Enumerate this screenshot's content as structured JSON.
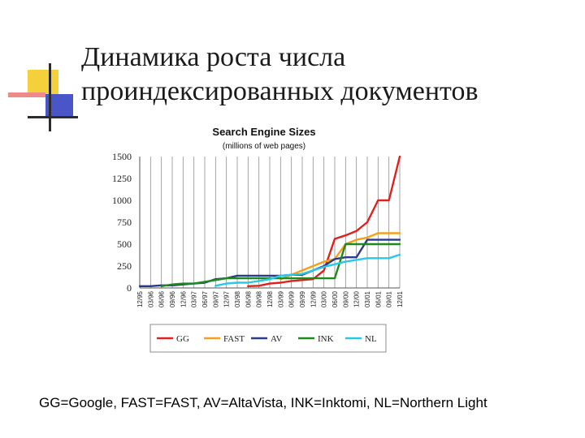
{
  "slide": {
    "title_line1": "Динамика роста числа",
    "title_line2": "проиндексированных документов",
    "caption": "GG=Google, FAST=FAST, AV=AltaVista, INK=Inktomi, NL=Northern Light"
  },
  "chart_data": {
    "type": "line",
    "title": "Search Engine Sizes",
    "subtitle": "(millions of web pages)",
    "xlabel": "",
    "ylabel": "",
    "ylim": [
      0,
      1500
    ],
    "yticks": [
      0,
      250,
      500,
      750,
      1000,
      1250,
      1500
    ],
    "ytick_labels": [
      "0",
      "250",
      "500",
      "750",
      "1000",
      "1250",
      "1500"
    ],
    "x": [
      "12/95",
      "03/96",
      "06/96",
      "09/96",
      "12/96",
      "03/97",
      "06/97",
      "09/97",
      "12/97",
      "03/98",
      "06/98",
      "09/98",
      "12/98",
      "03/99",
      "06/99",
      "09/99",
      "12/99",
      "03/00",
      "06/00",
      "09/00",
      "12/00",
      "03/01",
      "06/01",
      "09/01",
      "12/01"
    ],
    "grid": true,
    "legend_position": "bottom",
    "series": [
      {
        "name": "GG",
        "color": "#e0201e",
        "values": [
          null,
          null,
          null,
          null,
          null,
          null,
          null,
          null,
          null,
          null,
          20,
          25,
          50,
          60,
          80,
          90,
          100,
          200,
          560,
          600,
          650,
          750,
          1000,
          1000,
          1500
        ]
      },
      {
        "name": "FAST",
        "color": "#f4a018",
        "values": [
          null,
          null,
          null,
          null,
          null,
          null,
          null,
          null,
          null,
          null,
          null,
          null,
          null,
          100,
          150,
          200,
          250,
          300,
          330,
          500,
          550,
          575,
          625,
          625,
          625
        ]
      },
      {
        "name": "AV",
        "color": "#2a3a8c",
        "values": [
          20,
          20,
          30,
          30,
          40,
          50,
          60,
          100,
          110,
          140,
          140,
          140,
          140,
          140,
          150,
          150,
          200,
          250,
          330,
          350,
          350,
          550,
          550,
          550,
          550
        ]
      },
      {
        "name": "INK",
        "color": "#1e8a1e",
        "values": [
          null,
          null,
          20,
          40,
          50,
          50,
          70,
          90,
          110,
          110,
          110,
          110,
          110,
          110,
          110,
          110,
          110,
          110,
          110,
          500,
          500,
          500,
          500,
          500,
          500
        ]
      },
      {
        "name": "NL",
        "color": "#28c8e8",
        "values": [
          null,
          null,
          null,
          null,
          null,
          null,
          null,
          25,
          50,
          60,
          60,
          80,
          100,
          140,
          150,
          160,
          200,
          240,
          270,
          300,
          320,
          340,
          340,
          340,
          380
        ]
      }
    ]
  }
}
